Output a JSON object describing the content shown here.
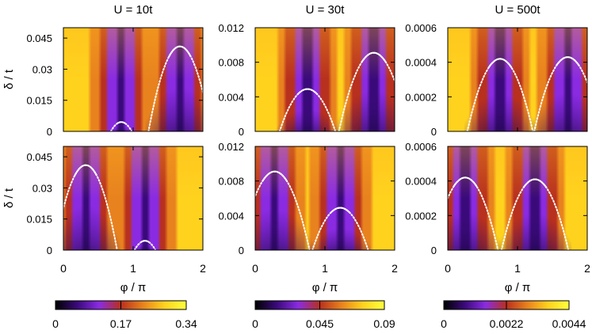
{
  "chart_data": {
    "type": "heatmap",
    "ylabel": "δ / t",
    "xlabel": "φ / π",
    "x_ticks": [
      "0",
      "1",
      "2"
    ],
    "xlim": [
      0,
      2
    ],
    "colormap": [
      "#000000",
      "#3a0a7a",
      "#8a2be2",
      "#b8301e",
      "#e8821e",
      "#ffd21e",
      "#ffff3c"
    ],
    "curve_color": "#ffffff",
    "columns": [
      {
        "title": "U = 10t",
        "ylim": [
          0,
          0.05
        ],
        "y_ticks": [
          {
            "value": 0,
            "label": "0"
          },
          {
            "value": 0.015,
            "label": "0.015"
          },
          {
            "value": 0.03,
            "label": "0.03"
          },
          {
            "value": 0.045,
            "label": "0.045"
          }
        ],
        "colorbar": {
          "range": [
            0,
            0.34
          ],
          "ticks": [
            {
              "value": 0,
              "label": "0"
            },
            {
              "value": 0.17,
              "label": "0.17"
            },
            {
              "value": 0.34,
              "label": "0.34"
            }
          ]
        }
      },
      {
        "title": "U = 30t",
        "ylim": [
          0,
          0.012
        ],
        "y_ticks": [
          {
            "value": 0,
            "label": "0"
          },
          {
            "value": 0.004,
            "label": "0.004"
          },
          {
            "value": 0.008,
            "label": "0.008"
          },
          {
            "value": 0.012,
            "label": "0.012"
          }
        ],
        "colorbar": {
          "range": [
            0,
            0.09
          ],
          "ticks": [
            {
              "value": 0,
              "label": "0"
            },
            {
              "value": 0.045,
              "label": "0.045"
            },
            {
              "value": 0.09,
              "label": "0.09"
            }
          ]
        }
      },
      {
        "title": "U = 500t",
        "ylim": [
          0,
          0.0006
        ],
        "y_ticks": [
          {
            "value": 0,
            "label": "0"
          },
          {
            "value": 0.0002,
            "label": "0.0002"
          },
          {
            "value": 0.0004,
            "label": "0.0004"
          },
          {
            "value": 0.0006,
            "label": "0.0006"
          }
        ],
        "colorbar": {
          "range": [
            0,
            0.0044
          ],
          "ticks": [
            {
              "value": 0,
              "label": "0"
            },
            {
              "value": 0.0022,
              "label": "0.0022"
            },
            {
              "value": 0.0044,
              "label": "0.0044"
            }
          ]
        }
      }
    ],
    "panels": [
      {
        "col": 0,
        "row": 0,
        "arcs": [
          {
            "center": 0.83,
            "peak": 0.0045,
            "halfwidth": 0.15
          },
          {
            "center": 1.67,
            "peak": 0.041,
            "halfwidth": 0.45
          }
        ]
      },
      {
        "col": 1,
        "row": 0,
        "arcs": [
          {
            "center": 0.75,
            "peak": 0.0049,
            "halfwidth": 0.4
          },
          {
            "center": 1.7,
            "peak": 0.0091,
            "halfwidth": 0.5
          }
        ]
      },
      {
        "col": 2,
        "row": 0,
        "arcs": [
          {
            "center": 0.75,
            "peak": 0.00042,
            "halfwidth": 0.47
          },
          {
            "center": 1.72,
            "peak": 0.00043,
            "halfwidth": 0.48
          }
        ]
      },
      {
        "col": 0,
        "row": 1,
        "arcs": [
          {
            "center": 0.32,
            "peak": 0.041,
            "halfwidth": 0.45
          },
          {
            "center": 1.17,
            "peak": 0.0045,
            "halfwidth": 0.15
          }
        ]
      },
      {
        "col": 1,
        "row": 1,
        "arcs": [
          {
            "center": 0.28,
            "peak": 0.0091,
            "halfwidth": 0.5
          },
          {
            "center": 1.22,
            "peak": 0.0049,
            "halfwidth": 0.4
          }
        ]
      },
      {
        "col": 2,
        "row": 1,
        "arcs": [
          {
            "center": 0.25,
            "peak": 0.00042,
            "halfwidth": 0.47
          },
          {
            "center": 1.25,
            "peak": 0.00041,
            "halfwidth": 0.48
          }
        ]
      }
    ]
  }
}
